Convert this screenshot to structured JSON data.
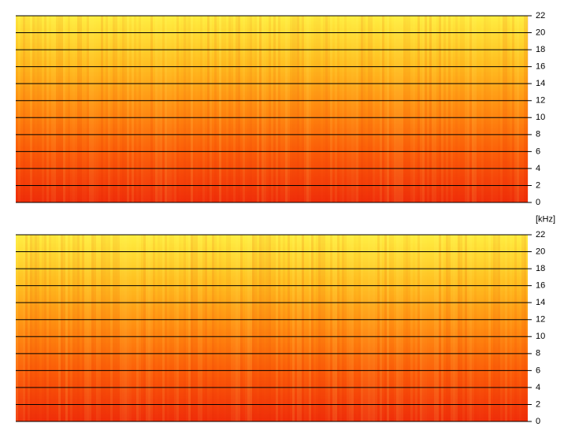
{
  "chart_data": [
    {
      "type": "spectrogram",
      "ylabel": "[kHz]",
      "ylim": [
        0,
        22
      ],
      "yticks": [
        0,
        2,
        4,
        6,
        8,
        10,
        12,
        14,
        16,
        18,
        20,
        22
      ],
      "grid": true,
      "colormap": [
        "#f02e0a",
        "#fb5a08",
        "#ff8c10",
        "#ffc020",
        "#ffee40"
      ]
    },
    {
      "type": "spectrogram",
      "ylim": [
        0,
        22
      ],
      "yticks": [
        0,
        2,
        4,
        6,
        8,
        10,
        12,
        14,
        16,
        18,
        20,
        22
      ],
      "grid": true,
      "colormap": [
        "#f02e0a",
        "#fb5a08",
        "#ff8c10",
        "#ffc020",
        "#ffee40"
      ]
    }
  ]
}
